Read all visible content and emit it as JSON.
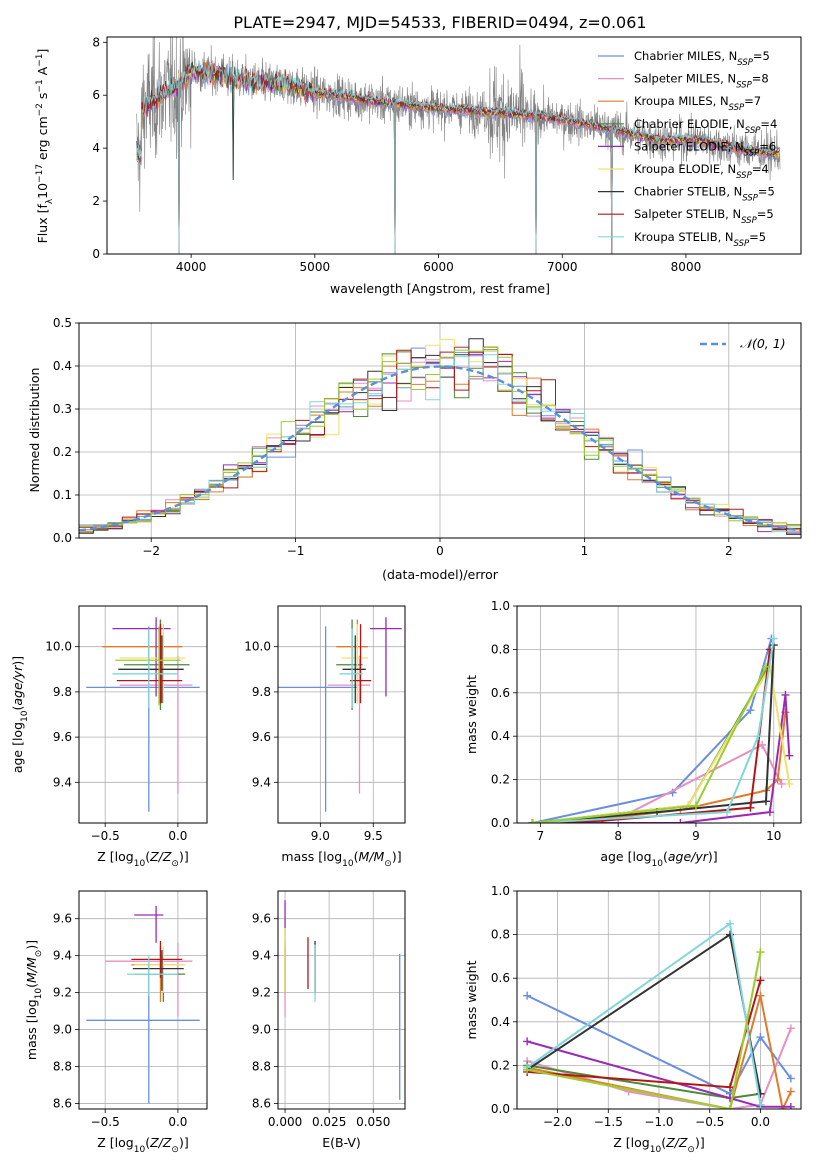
{
  "title": "PLATE=2947, MJD=54533, FIBERID=0494, z=0.061",
  "colors": {
    "series": [
      "#6a8fe0",
      "#e88fbf",
      "#e07b2a",
      "#4a8a3a",
      "#9a2ab4",
      "#f0e06a",
      "#333333",
      "#b01818",
      "#7fd6dc"
    ],
    "extra": [
      "#9acd32",
      "#6a5acd"
    ],
    "data_gray": "#808080",
    "grid": "#b0b0b0"
  },
  "chart_data": [
    {
      "id": "spectrum",
      "type": "line",
      "title": "PLATE=2947, MJD=54533, FIBERID=0494, z=0.061",
      "xlabel": "wavelength [Angstrom, rest frame]",
      "ylabel": "Flux [f_λ10^-17 erg cm^-2 s^-1 A^-1]",
      "xlim": [
        3320,
        8930
      ],
      "ylim": [
        0,
        8.2
      ],
      "xticks": [
        4000,
        5000,
        6000,
        7000,
        8000
      ],
      "yticks": [
        0,
        2,
        4,
        6,
        8
      ],
      "legend_loc": "upper right",
      "legend": [
        {
          "pre": "Chabrier MILES, N",
          "sub": "SSP",
          "post": "=5"
        },
        {
          "pre": "Salpeter MILES, N",
          "sub": "SSP",
          "post": "=8"
        },
        {
          "pre": "Kroupa MILES, N",
          "sub": "SSP",
          "post": "=7"
        },
        {
          "pre": "Chabrier ELODIE, N",
          "sub": "SSP",
          "post": "=4"
        },
        {
          "pre": "Salpeter ELODIE, N",
          "sub": "SSP",
          "post": "=6"
        },
        {
          "pre": "Kroupa ELODIE, N",
          "sub": "SSP",
          "post": "=4"
        },
        {
          "pre": "Chabrier STELIB, N",
          "sub": "SSP",
          "post": "=5"
        },
        {
          "pre": "Salpeter STELIB, N",
          "sub": "SSP",
          "post": "=5"
        },
        {
          "pre": "Kroupa STELIB, N",
          "sub": "SSP",
          "post": "=5"
        }
      ],
      "continuum": {
        "x": [
          3600,
          3750,
          3900,
          4000,
          4200,
          4500,
          4800,
          5000,
          5300,
          5600,
          6000,
          6300,
          6600,
          6800,
          7000,
          7200,
          7500,
          7800,
          8100,
          8400,
          8700
        ],
        "y": [
          5.4,
          6.0,
          6.3,
          6.9,
          6.8,
          6.5,
          6.4,
          6.1,
          5.9,
          5.7,
          5.5,
          5.4,
          5.3,
          5.2,
          5.1,
          4.9,
          4.6,
          4.3,
          4.3,
          4.0,
          3.8
        ]
      }
    },
    {
      "id": "residuals",
      "type": "line",
      "xlabel": "(data-model)/error",
      "ylabel": "Normed distribution",
      "xlim": [
        -2.5,
        2.5
      ],
      "ylim": [
        0,
        0.5
      ],
      "xticks": [
        -2,
        -1,
        0,
        1,
        2
      ],
      "yticks": [
        0.0,
        0.1,
        0.2,
        0.3,
        0.4,
        0.5
      ],
      "legend_loc": "upper right",
      "legend": [
        "𝒩(0, 1)"
      ],
      "hist_bin_width": 0.1
    },
    {
      "id": "age_vs_Z",
      "type": "scatter",
      "xlabel": "Z [log10(Z/Z⊙)]",
      "ylabel": "age [log10(age/yr)]",
      "xlim": [
        -0.68,
        0.2
      ],
      "ylim": [
        9.22,
        10.18
      ],
      "xticks": [
        -0.5,
        0.0
      ],
      "yticks": [
        9.4,
        9.6,
        9.8,
        10.0
      ],
      "points": [
        {
          "x": -0.2,
          "y": 9.82,
          "xerr": [
            0.43,
            0.35
          ],
          "yerr": [
            0.55,
            0.27
          ],
          "c": 0
        },
        {
          "x": 0.0,
          "y": 9.83,
          "xerr": [
            0.4,
            0.1
          ],
          "yerr": [
            0.48,
            0.13
          ],
          "c": 1
        },
        {
          "x": -0.12,
          "y": 10.0,
          "xerr": [
            0.4,
            0.15
          ],
          "yerr": [
            0.25,
            0.12
          ],
          "c": 2
        },
        {
          "x": -0.12,
          "y": 9.92,
          "xerr": [
            0.25,
            0.2
          ],
          "yerr": [
            0.2,
            0.2
          ],
          "c": 3
        },
        {
          "x": -0.15,
          "y": 10.08,
          "xerr": [
            0.3,
            0.1
          ],
          "yerr": [
            0.3,
            0.05
          ],
          "c": 4
        },
        {
          "x": -0.1,
          "y": 9.95,
          "xerr": [
            0.3,
            0.15
          ],
          "yerr": [
            0.2,
            0.15
          ],
          "c": 5
        },
        {
          "x": -0.11,
          "y": 9.9,
          "xerr": [
            0.3,
            0.15
          ],
          "yerr": [
            0.15,
            0.15
          ],
          "c": 6
        },
        {
          "x": -0.12,
          "y": 9.85,
          "xerr": [
            0.3,
            0.15
          ],
          "yerr": [
            0.1,
            0.25
          ],
          "c": 7
        },
        {
          "x": -0.2,
          "y": 9.88,
          "xerr": [
            0.25,
            0.2
          ],
          "yerr": [
            0.15,
            0.2
          ],
          "c": 8
        },
        {
          "x": -0.13,
          "y": 9.94,
          "xerr": [
            0.3,
            0.15
          ],
          "yerr": [
            0.2,
            0.15
          ],
          "c": 9
        }
      ]
    },
    {
      "id": "age_vs_mass",
      "type": "scatter",
      "xlabel": "mass [log10(M/M⊙)]",
      "ylabel": "",
      "xlim": [
        8.6,
        9.8
      ],
      "ylim": [
        9.22,
        10.18
      ],
      "xticks": [
        9.0,
        9.5
      ],
      "yticks": [
        9.4,
        9.6,
        9.8,
        10.0
      ],
      "points": [
        {
          "x": 9.05,
          "y": 9.82,
          "xerr": [
            0.45,
            0.3
          ],
          "yerr": [
            0.55,
            0.27
          ],
          "c": 0
        },
        {
          "x": 9.37,
          "y": 9.83,
          "xerr": [
            0.3,
            0.1
          ],
          "yerr": [
            0.48,
            0.13
          ],
          "c": 1
        },
        {
          "x": 9.35,
          "y": 10.0,
          "xerr": [
            0.2,
            0.1
          ],
          "yerr": [
            0.25,
            0.12
          ],
          "c": 2
        },
        {
          "x": 9.3,
          "y": 9.92,
          "xerr": [
            0.15,
            0.1
          ],
          "yerr": [
            0.2,
            0.2
          ],
          "c": 3
        },
        {
          "x": 9.62,
          "y": 10.08,
          "xerr": [
            0.15,
            0.15
          ],
          "yerr": [
            0.3,
            0.05
          ],
          "c": 4
        },
        {
          "x": 9.35,
          "y": 9.95,
          "xerr": [
            0.15,
            0.1
          ],
          "yerr": [
            0.2,
            0.15
          ],
          "c": 5
        },
        {
          "x": 9.33,
          "y": 9.9,
          "xerr": [
            0.12,
            0.1
          ],
          "yerr": [
            0.15,
            0.15
          ],
          "c": 6
        },
        {
          "x": 9.38,
          "y": 9.85,
          "xerr": [
            0.1,
            0.1
          ],
          "yerr": [
            0.1,
            0.25
          ],
          "c": 7
        },
        {
          "x": 9.3,
          "y": 9.88,
          "xerr": [
            0.12,
            0.1
          ],
          "yerr": [
            0.15,
            0.2
          ],
          "c": 8
        }
      ]
    },
    {
      "id": "weight_vs_age",
      "type": "line",
      "xlabel": "age [log10(age/yr)]",
      "ylabel": "mass weight",
      "xlim": [
        6.7,
        10.35
      ],
      "ylim": [
        0,
        1.0
      ],
      "xticks": [
        7,
        8,
        9,
        10
      ],
      "yticks": [
        0.0,
        0.2,
        0.4,
        0.6,
        0.8,
        1.0
      ],
      "series": [
        {
          "c": 0,
          "x": [
            6.9,
            8.7,
            9.7,
            9.97
          ],
          "y": [
            0.0,
            0.14,
            0.52,
            0.85
          ]
        },
        {
          "c": 1,
          "x": [
            6.9,
            8.0,
            9.85,
            10.1
          ],
          "y": [
            0.0,
            0.02,
            0.36,
            0.18
          ]
        },
        {
          "c": 2,
          "x": [
            6.9,
            7.8,
            8.8,
            9.9,
            10.05,
            10.15
          ],
          "y": [
            0.0,
            0.02,
            0.06,
            0.15,
            0.2,
            0.51
          ]
        },
        {
          "c": 3,
          "x": [
            6.9,
            8.9,
            9.9
          ],
          "y": [
            0.0,
            0.08,
            0.7
          ]
        },
        {
          "c": 4,
          "x": [
            6.9,
            8.8,
            9.95,
            10.15,
            10.2
          ],
          "y": [
            0.0,
            0.0,
            0.05,
            0.59,
            0.31
          ]
        },
        {
          "c": 5,
          "x": [
            6.9,
            8.9,
            9.95,
            10.2
          ],
          "y": [
            0.0,
            0.08,
            0.72,
            0.18
          ]
        },
        {
          "c": 6,
          "x": [
            6.9,
            8.5,
            9.9,
            10.0
          ],
          "y": [
            0.0,
            0.05,
            0.1,
            0.82
          ]
        },
        {
          "c": 7,
          "x": [
            6.9,
            7.8,
            9.7,
            9.95
          ],
          "y": [
            0.0,
            0.01,
            0.07,
            0.8
          ]
        },
        {
          "c": 8,
          "x": [
            6.9,
            9.4,
            9.8,
            10.0
          ],
          "y": [
            0.0,
            0.05,
            0.4,
            0.85
          ]
        },
        {
          "c": 9,
          "x": [
            6.9,
            9.0,
            9.9
          ],
          "y": [
            0.0,
            0.08,
            0.72
          ]
        }
      ]
    },
    {
      "id": "mass_vs_Z",
      "type": "scatter",
      "xlabel": "Z [log10(Z/Z⊙)]",
      "ylabel": "mass [log10(M/M⊙)]",
      "xlim": [
        -0.68,
        0.2
      ],
      "ylim": [
        8.57,
        9.75
      ],
      "xticks": [
        -0.5,
        0.0
      ],
      "yticks": [
        8.6,
        8.8,
        9.0,
        9.2,
        9.4,
        9.6
      ],
      "points": [
        {
          "x": -0.2,
          "y": 9.05,
          "xerr": [
            0.43,
            0.35
          ],
          "yerr": [
            0.45,
            0.3
          ],
          "c": 0
        },
        {
          "x": 0.0,
          "y": 9.37,
          "xerr": [
            0.5,
            0.1
          ],
          "yerr": [
            0.3,
            0.1
          ],
          "c": 1
        },
        {
          "x": -0.12,
          "y": 9.35,
          "xerr": [
            0.2,
            0.1
          ],
          "yerr": [
            0.2,
            0.1
          ],
          "c": 2
        },
        {
          "x": -0.1,
          "y": 9.3,
          "xerr": [
            0.2,
            0.15
          ],
          "yerr": [
            0.15,
            0.1
          ],
          "c": 3
        },
        {
          "x": -0.15,
          "y": 9.62,
          "xerr": [
            0.15,
            0.05
          ],
          "yerr": [
            0.15,
            0.05
          ],
          "c": 4
        },
        {
          "x": -0.1,
          "y": 9.35,
          "xerr": [
            0.2,
            0.15
          ],
          "yerr": [
            0.15,
            0.1
          ],
          "c": 5
        },
        {
          "x": -0.11,
          "y": 9.33,
          "xerr": [
            0.2,
            0.15
          ],
          "yerr": [
            0.12,
            0.1
          ],
          "c": 6
        },
        {
          "x": -0.12,
          "y": 9.38,
          "xerr": [
            0.2,
            0.15
          ],
          "yerr": [
            0.1,
            0.1
          ],
          "c": 7
        },
        {
          "x": -0.2,
          "y": 9.3,
          "xerr": [
            0.15,
            0.2
          ],
          "yerr": [
            0.12,
            0.1
          ],
          "c": 8
        }
      ]
    },
    {
      "id": "mass_vs_ebv",
      "type": "scatter",
      "xlabel": "E(B-V)",
      "ylabel": "",
      "xlim": [
        -0.004,
        0.068
      ],
      "ylim": [
        8.57,
        9.75
      ],
      "xticks": [
        0.0,
        0.025,
        0.05
      ],
      "xticklabels": [
        "0.000",
        "0.025",
        "0.050"
      ],
      "yticks": [
        8.6,
        8.8,
        9.0,
        9.2,
        9.4,
        9.6
      ],
      "points": [
        {
          "x": 0.065,
          "y": 9.05,
          "xerr": [
            0,
            0
          ],
          "yerr": [
            0.43,
            0.36
          ],
          "c": 0
        },
        {
          "x": 0.0,
          "y": 9.37,
          "xerr": [
            0,
            0
          ],
          "yerr": [
            0.3,
            0.1
          ],
          "c": 1
        },
        {
          "x": 0.0,
          "y": 9.35,
          "xerr": [
            0,
            0
          ],
          "yerr": [
            0.15,
            0.1
          ],
          "c": 2
        },
        {
          "x": 0.0,
          "y": 9.3,
          "xerr": [
            0,
            0
          ],
          "yerr": [
            0.1,
            0.25
          ],
          "c": 3
        },
        {
          "x": 0.0,
          "y": 9.6,
          "xerr": [
            0,
            0
          ],
          "yerr": [
            0.05,
            0.1
          ],
          "c": 4
        },
        {
          "x": 0.0,
          "y": 9.35,
          "xerr": [
            0,
            0
          ],
          "yerr": [
            0.15,
            0.2
          ],
          "c": 5
        },
        {
          "x": 0.017,
          "y": 9.33,
          "xerr": [
            0,
            0
          ],
          "yerr": [
            0.13,
            0.15
          ],
          "c": 6
        },
        {
          "x": 0.013,
          "y": 9.35,
          "xerr": [
            0,
            0
          ],
          "yerr": [
            0.13,
            0.15
          ],
          "c": 7
        },
        {
          "x": 0.017,
          "y": 9.3,
          "xerr": [
            0,
            0
          ],
          "yerr": [
            0.15,
            0.16
          ],
          "c": 8
        }
      ]
    },
    {
      "id": "weight_vs_Z",
      "type": "line",
      "xlabel": "Z [log10(Z/Z⊙)]",
      "ylabel": "mass weight",
      "xlim": [
        -2.4,
        0.4
      ],
      "ylim": [
        0,
        1.0
      ],
      "xticks": [
        -2.0,
        -1.5,
        -1.0,
        -0.5,
        0.0
      ],
      "yticks": [
        0.0,
        0.2,
        0.4,
        0.6,
        0.8,
        1.0
      ],
      "series": [
        {
          "c": 0,
          "x": [
            -2.3,
            -0.3,
            0.0,
            0.3
          ],
          "y": [
            0.52,
            0.07,
            0.33,
            0.14
          ]
        },
        {
          "c": 1,
          "x": [
            -2.3,
            -1.3,
            -0.3,
            0.0,
            0.3
          ],
          "y": [
            0.22,
            0.08,
            0.0,
            0.02,
            0.37
          ]
        },
        {
          "c": 2,
          "x": [
            -2.3,
            -0.3,
            0.0,
            0.22,
            0.3
          ],
          "y": [
            0.19,
            0.0,
            0.52,
            0.0,
            0.08
          ]
        },
        {
          "c": 3,
          "x": [
            -2.3,
            -0.3,
            0.0
          ],
          "y": [
            0.2,
            0.05,
            0.07
          ]
        },
        {
          "c": 4,
          "x": [
            -2.3,
            -0.3,
            0.0,
            0.3
          ],
          "y": [
            0.31,
            0.05,
            0.01,
            0.01
          ]
        },
        {
          "c": 5,
          "x": [
            -2.3,
            -0.3,
            0.0
          ],
          "y": [
            0.18,
            0.0,
            0.72
          ]
        },
        {
          "c": 6,
          "x": [
            -2.3,
            -0.3,
            0.0
          ],
          "y": [
            0.18,
            0.8,
            0.07
          ]
        },
        {
          "c": 7,
          "x": [
            -2.3,
            -0.3,
            0.0
          ],
          "y": [
            0.17,
            0.1,
            0.59
          ]
        },
        {
          "c": 8,
          "x": [
            -2.3,
            -0.3,
            0.0
          ],
          "y": [
            0.19,
            0.85,
            0.02
          ]
        },
        {
          "c": 9,
          "x": [
            -2.3,
            -0.3,
            0.0
          ],
          "y": [
            0.18,
            0.0,
            0.72
          ]
        }
      ]
    }
  ]
}
